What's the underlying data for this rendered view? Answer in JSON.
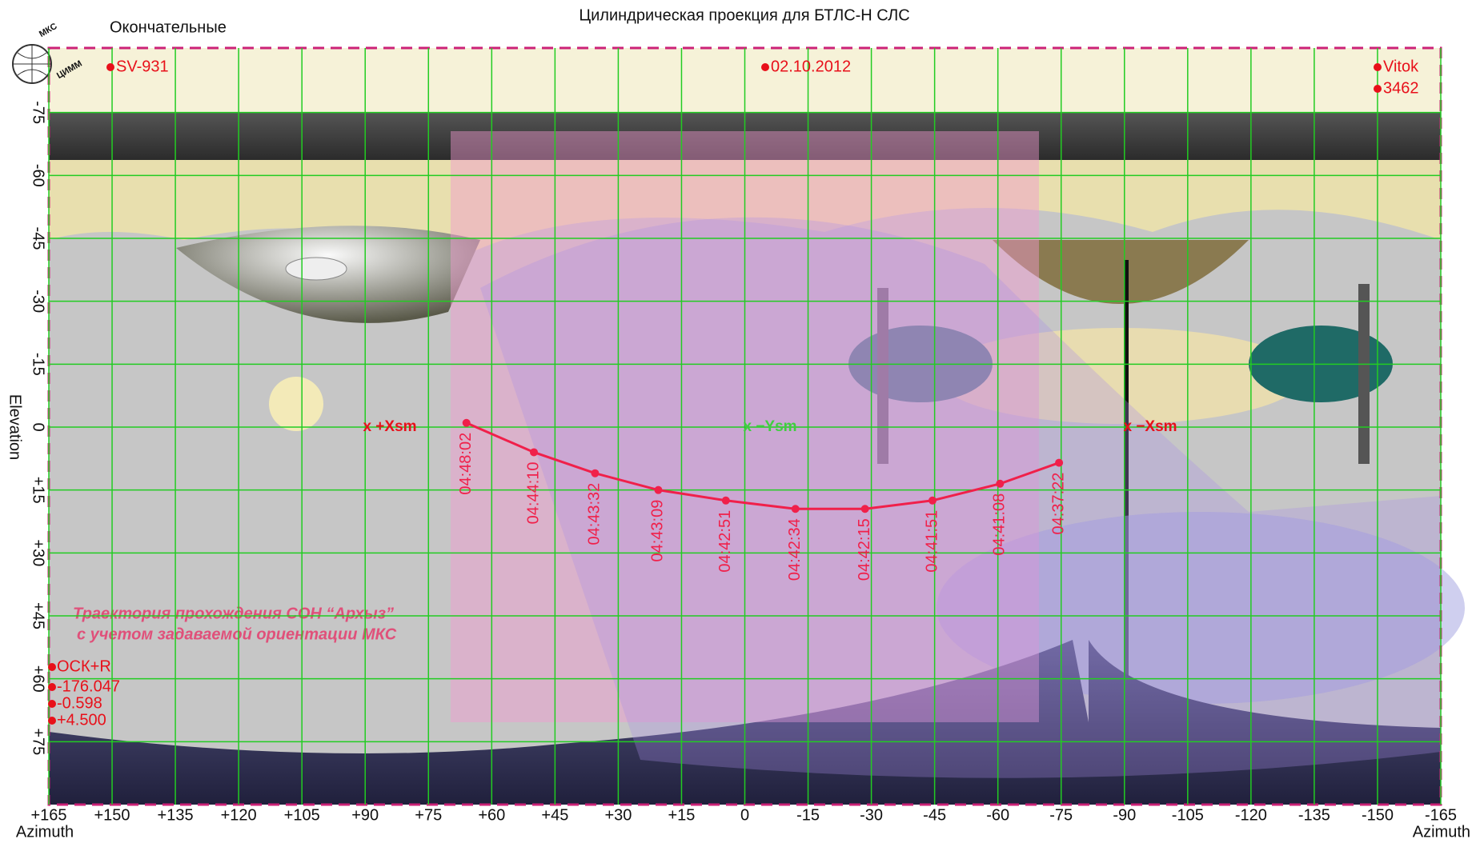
{
  "chart_data": {
    "type": "line",
    "title": "Цилиндрическая проекция для БТЛС-Н СЛС",
    "subtitle": "Окончательные",
    "logo": [
      "МКС",
      "ЦИММ"
    ],
    "info": [
      "SV-931",
      "02.10.2012",
      "Vitok",
      "3462"
    ],
    "params": [
      "ОСК+R",
      "-176.047",
      "-0.598",
      "+4.500"
    ],
    "caption": [
      "Траектория прохождения СОН “Архыз”",
      "с учетом задаваемой ориентации МКС"
    ],
    "xlabel": "Azimuth",
    "ylabel": "Elevation",
    "annotations": [
      {
        "text": "x +Xsm",
        "color": "#e8101a"
      },
      {
        "text": "x −Ysm",
        "color": "#3fcf3f"
      },
      {
        "text": "x −Xsm",
        "color": "#e8101a"
      }
    ],
    "color": "#f0204a",
    "x": [
      66,
      50,
      35.5,
      20.5,
      4.5,
      -12,
      -28.5,
      -44.5,
      -60.5,
      -74.5
    ],
    "values": [
      -1,
      6,
      11,
      15,
      17.5,
      19.5,
      19.5,
      17.5,
      13.5,
      8.5
    ],
    "point_labels": [
      "04:48:02",
      "04:44:10",
      "04:43:32",
      "04:43:09",
      "04:42:51",
      "04:42:34",
      "04:42:15",
      "04:41:51",
      "04:41:08",
      "04:37:22"
    ],
    "xlim": [
      165,
      -165
    ],
    "ylim": [
      90,
      -90
    ],
    "xticks": [
      {
        "value": 165,
        "label": "+165"
      },
      {
        "value": 150,
        "label": "+150"
      },
      {
        "value": 135,
        "label": "+135"
      },
      {
        "value": 120,
        "label": "+120"
      },
      {
        "value": 105,
        "label": "+105"
      },
      {
        "value": 90,
        "label": "+90"
      },
      {
        "value": 75,
        "label": "+75"
      },
      {
        "value": 60,
        "label": "+60"
      },
      {
        "value": 45,
        "label": "+45"
      },
      {
        "value": 30,
        "label": "+30"
      },
      {
        "value": 15,
        "label": "+15"
      },
      0,
      -15,
      -30,
      -45,
      -60,
      -75,
      -90,
      -105,
      -120,
      -135,
      -150,
      -165
    ],
    "yticks": [
      -75,
      -60,
      -45,
      -30,
      -15,
      0,
      {
        "value": 15,
        "label": "+15"
      },
      {
        "value": 30,
        "label": "+30"
      },
      {
        "value": 45,
        "label": "+45"
      },
      {
        "value": 60,
        "label": "+60"
      },
      {
        "value": 75,
        "label": "+75"
      }
    ],
    "grid": true,
    "grid_color": "#22cc22"
  }
}
